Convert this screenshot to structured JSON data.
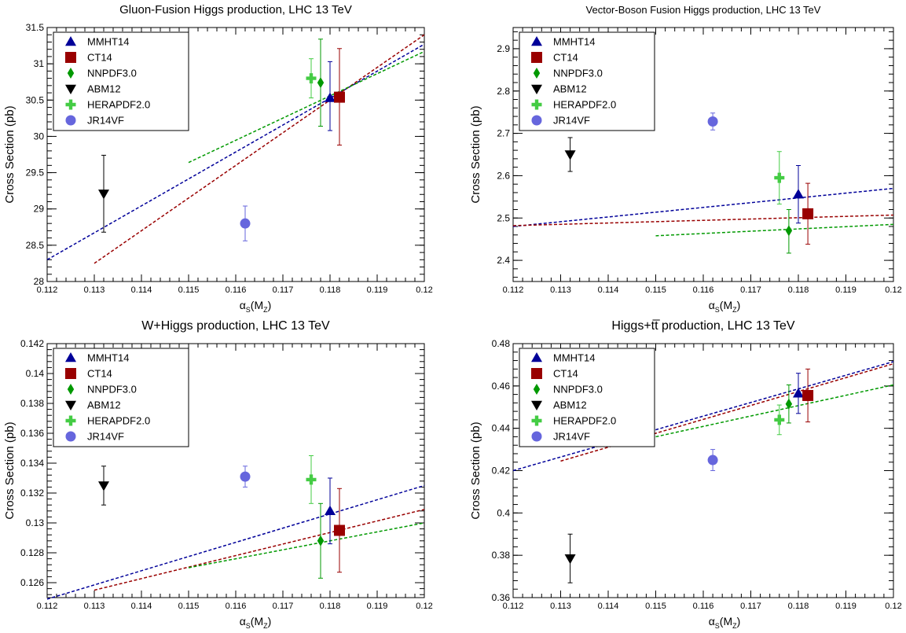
{
  "chart_data": [
    {
      "type": "scatter",
      "title": "Gluon-Fusion Higgs production, LHC 13 TeV",
      "xlabel": "αS(MZ)",
      "ylabel": "Cross Section (pb)",
      "xlim": [
        0.112,
        0.12
      ],
      "ylim": [
        28,
        31.5
      ],
      "xticks": [
        "0.112",
        "0.113",
        "0.114",
        "0.115",
        "0.116",
        "0.117",
        "0.118",
        "0.119",
        "0.12"
      ],
      "yticks": [
        "28",
        "28.5",
        "29",
        "29.5",
        "30",
        "30.5",
        "31",
        "31.5"
      ],
      "legend_position": "top-left",
      "series": [
        {
          "name": "MMHT14",
          "x": 0.118,
          "y": 30.53,
          "yerr_up": 0.5,
          "yerr_down": 0.45,
          "marker": "triangle-up",
          "color": "#000099",
          "line": [
            [
              0.112,
              28.3
            ],
            [
              0.12,
              31.27
            ]
          ]
        },
        {
          "name": "CT14",
          "x": 0.1182,
          "y": 30.54,
          "yerr_up": 0.67,
          "yerr_down": 0.66,
          "marker": "square",
          "color": "#990000",
          "line": [
            [
              0.113,
              28.25
            ],
            [
              0.12,
              31.4
            ]
          ]
        },
        {
          "name": "NNPDF3.0",
          "x": 0.1178,
          "y": 30.74,
          "yerr_up": 0.6,
          "yerr_down": 0.6,
          "marker": "diamond",
          "color": "#009900",
          "line": [
            [
              0.115,
              29.64
            ],
            [
              0.12,
              31.17
            ]
          ]
        },
        {
          "name": "ABM12",
          "x": 0.1132,
          "y": 29.21,
          "yerr_up": 0.53,
          "yerr_down": 0.53,
          "marker": "triangle-down",
          "color": "#000000",
          "line": null
        },
        {
          "name": "HERAPDF2.0",
          "x": 0.1176,
          "y": 30.8,
          "yerr_up": 0.27,
          "yerr_down": 0.27,
          "marker": "cross",
          "color": "#44cc44",
          "line": null
        },
        {
          "name": "JR14VF",
          "x": 0.1162,
          "y": 28.8,
          "yerr_up": 0.24,
          "yerr_down": 0.24,
          "marker": "circle",
          "color": "#6666dd",
          "line": null
        }
      ]
    },
    {
      "type": "scatter",
      "title": "Vector-Boson Fusion Higgs production, LHC 13 TeV",
      "xlabel": "αS(MZ)",
      "ylabel": "Cross Section (pb)",
      "xlim": [
        0.112,
        0.12
      ],
      "ylim": [
        2.35,
        2.95
      ],
      "xticks": [
        "0.112",
        "0.113",
        "0.114",
        "0.115",
        "0.116",
        "0.117",
        "0.118",
        "0.119",
        "0.12"
      ],
      "yticks": [
        "2.4",
        "2.5",
        "2.6",
        "2.7",
        "2.8",
        "2.9"
      ],
      "legend_position": "top-left",
      "series": [
        {
          "name": "MMHT14",
          "x": 0.118,
          "y": 2.556,
          "yerr_up": 0.068,
          "yerr_down": 0.068,
          "marker": "triangle-up",
          "color": "#000099",
          "line": [
            [
              0.112,
              2.48
            ],
            [
              0.12,
              2.57
            ]
          ]
        },
        {
          "name": "CT14",
          "x": 0.1182,
          "y": 2.51,
          "yerr_up": 0.072,
          "yerr_down": 0.072,
          "marker": "square",
          "color": "#990000",
          "line": [
            [
              0.112,
              2.482
            ],
            [
              0.12,
              2.507
            ]
          ]
        },
        {
          "name": "NNPDF3.0",
          "x": 0.1178,
          "y": 2.47,
          "yerr_up": 0.05,
          "yerr_down": 0.053,
          "marker": "diamond",
          "color": "#009900",
          "line": [
            [
              0.115,
              2.458
            ],
            [
              0.12,
              2.485
            ]
          ]
        },
        {
          "name": "ABM12",
          "x": 0.1132,
          "y": 2.65,
          "yerr_up": 0.04,
          "yerr_down": 0.04,
          "marker": "triangle-down",
          "color": "#000000",
          "line": null
        },
        {
          "name": "HERAPDF2.0",
          "x": 0.1176,
          "y": 2.595,
          "yerr_up": 0.062,
          "yerr_down": 0.062,
          "marker": "cross",
          "color": "#44cc44",
          "line": null
        },
        {
          "name": "JR14VF",
          "x": 0.1162,
          "y": 2.728,
          "yerr_up": 0.02,
          "yerr_down": 0.02,
          "marker": "circle",
          "color": "#6666dd",
          "line": null
        }
      ]
    },
    {
      "type": "scatter",
      "title": "W+Higgs production, LHC 13 TeV",
      "xlabel": "αS(MZ)",
      "ylabel": "Cross Section (pb)",
      "xlim": [
        0.112,
        0.12
      ],
      "ylim": [
        0.125,
        0.142
      ],
      "xticks": [
        "0.112",
        "0.113",
        "0.114",
        "0.115",
        "0.116",
        "0.117",
        "0.118",
        "0.119",
        "0.12"
      ],
      "yticks": [
        "0.126",
        "0.128",
        "0.13",
        "0.132",
        "0.134",
        "0.136",
        "0.138",
        "0.14",
        "0.142"
      ],
      "legend_position": "top-left",
      "series": [
        {
          "name": "MMHT14",
          "x": 0.118,
          "y": 0.1308,
          "yerr_up": 0.0022,
          "yerr_down": 0.0022,
          "marker": "triangle-up",
          "color": "#000099",
          "line": [
            [
              0.112,
              0.1249
            ],
            [
              0.12,
              0.1325
            ]
          ]
        },
        {
          "name": "CT14",
          "x": 0.1182,
          "y": 0.1295,
          "yerr_up": 0.0028,
          "yerr_down": 0.0028,
          "marker": "square",
          "color": "#990000",
          "line": [
            [
              0.113,
              0.1255
            ],
            [
              0.12,
              0.1309
            ]
          ]
        },
        {
          "name": "NNPDF3.0",
          "x": 0.1178,
          "y": 0.1288,
          "yerr_up": 0.0025,
          "yerr_down": 0.0025,
          "marker": "diamond",
          "color": "#009900",
          "line": [
            [
              0.115,
              0.127
            ],
            [
              0.12,
              0.13
            ]
          ]
        },
        {
          "name": "ABM12",
          "x": 0.1132,
          "y": 0.1325,
          "yerr_up": 0.0013,
          "yerr_down": 0.0013,
          "marker": "triangle-down",
          "color": "#000000",
          "line": null
        },
        {
          "name": "HERAPDF2.0",
          "x": 0.1176,
          "y": 0.1329,
          "yerr_up": 0.0016,
          "yerr_down": 0.0016,
          "marker": "cross",
          "color": "#44cc44",
          "line": null
        },
        {
          "name": "JR14VF",
          "x": 0.1162,
          "y": 0.1331,
          "yerr_up": 0.0007,
          "yerr_down": 0.0007,
          "marker": "circle",
          "color": "#6666dd",
          "line": null
        }
      ]
    },
    {
      "type": "scatter",
      "title": "Higgs+tt̅ production, LHC 13 TeV",
      "xlabel": "αS(MZ)",
      "ylabel": "Cross Section (pb)",
      "xlim": [
        0.112,
        0.12
      ],
      "ylim": [
        0.36,
        0.48
      ],
      "xticks": [
        "0.112",
        "0.113",
        "0.114",
        "0.115",
        "0.116",
        "0.117",
        "0.118",
        "0.119",
        "0.12"
      ],
      "yticks": [
        "0.36",
        "0.38",
        "0.4",
        "0.42",
        "0.44",
        "0.46",
        "0.48"
      ],
      "legend_position": "top-left",
      "series": [
        {
          "name": "MMHT14",
          "x": 0.118,
          "y": 0.4565,
          "yerr_up": 0.0095,
          "yerr_down": 0.0095,
          "marker": "triangle-up",
          "color": "#000099",
          "line": [
            [
              0.112,
              0.42
            ],
            [
              0.12,
              0.4715
            ]
          ]
        },
        {
          "name": "CT14",
          "x": 0.1182,
          "y": 0.4555,
          "yerr_up": 0.0125,
          "yerr_down": 0.0125,
          "marker": "square",
          "color": "#990000",
          "line": [
            [
              0.113,
              0.4245
            ],
            [
              0.12,
              0.4705
            ]
          ]
        },
        {
          "name": "NNPDF3.0",
          "x": 0.1178,
          "y": 0.4515,
          "yerr_up": 0.009,
          "yerr_down": 0.009,
          "marker": "diamond",
          "color": "#009900",
          "line": [
            [
              0.115,
              0.436
            ],
            [
              0.12,
              0.4605
            ]
          ]
        },
        {
          "name": "ABM12",
          "x": 0.1132,
          "y": 0.3785,
          "yerr_up": 0.0115,
          "yerr_down": 0.0115,
          "marker": "triangle-down",
          "color": "#000000",
          "line": null
        },
        {
          "name": "HERAPDF2.0",
          "x": 0.1176,
          "y": 0.444,
          "yerr_up": 0.007,
          "yerr_down": 0.007,
          "marker": "cross",
          "color": "#44cc44",
          "line": null
        },
        {
          "name": "JR14VF",
          "x": 0.1162,
          "y": 0.425,
          "yerr_up": 0.005,
          "yerr_down": 0.005,
          "marker": "circle",
          "color": "#6666dd",
          "line": null
        }
      ]
    }
  ]
}
